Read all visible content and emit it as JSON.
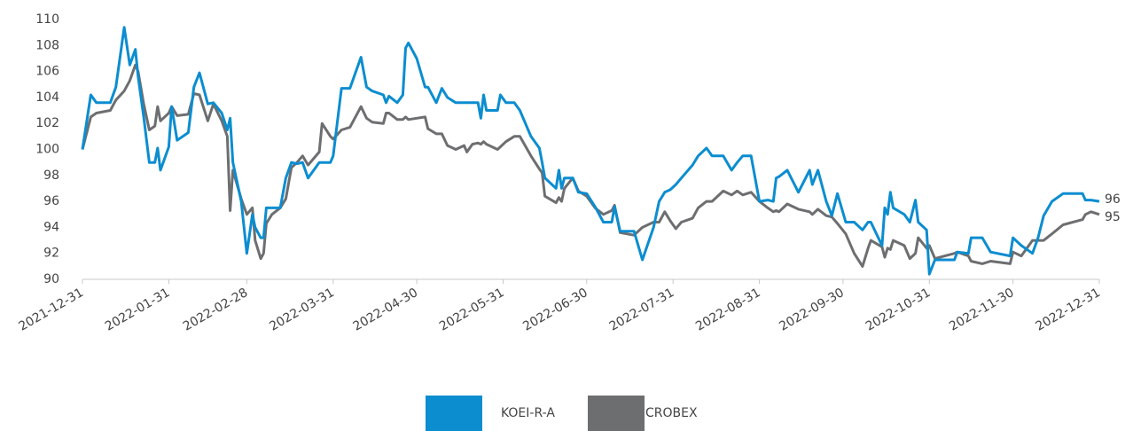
{
  "chart_data": {
    "type": "line",
    "x": [
      "2021-12-31",
      "2022-01-03",
      "2022-01-05",
      "2022-01-10",
      "2022-01-12",
      "2022-01-15",
      "2022-01-17",
      "2022-01-19",
      "2022-01-20",
      "2022-01-22",
      "2022-01-24",
      "2022-01-26",
      "2022-01-27",
      "2022-01-28",
      "2022-01-31",
      "2022-02-01",
      "2022-02-03",
      "2022-02-07",
      "2022-02-09",
      "2022-02-11",
      "2022-02-14",
      "2022-02-16",
      "2022-02-19",
      "2022-02-21",
      "2022-02-22",
      "2022-02-23",
      "2022-02-26",
      "2022-02-28",
      "2022-03-02",
      "2022-03-03",
      "2022-03-05",
      "2022-03-06",
      "2022-03-07",
      "2022-03-09",
      "2022-03-12",
      "2022-03-14",
      "2022-03-16",
      "2022-03-18",
      "2022-03-20",
      "2022-03-22",
      "2022-03-26",
      "2022-03-27",
      "2022-03-30",
      "2022-03-31",
      "2022-04-03",
      "2022-04-06",
      "2022-04-10",
      "2022-04-12",
      "2022-04-14",
      "2022-04-18",
      "2022-04-19",
      "2022-04-20",
      "2022-04-23",
      "2022-04-25",
      "2022-04-26",
      "2022-04-27",
      "2022-04-30",
      "2022-05-03",
      "2022-05-04",
      "2022-05-07",
      "2022-05-09",
      "2022-05-11",
      "2022-05-14",
      "2022-05-17",
      "2022-05-18",
      "2022-05-20",
      "2022-05-22",
      "2022-05-23",
      "2022-05-24",
      "2022-05-25",
      "2022-05-29",
      "2022-05-30",
      "2022-06-01",
      "2022-06-04",
      "2022-06-06",
      "2022-06-10",
      "2022-06-13",
      "2022-06-14",
      "2022-06-15",
      "2022-06-19",
      "2022-06-20",
      "2022-06-21",
      "2022-06-22",
      "2022-06-25",
      "2022-06-27",
      "2022-06-30",
      "2022-07-03",
      "2022-07-06",
      "2022-07-09",
      "2022-07-10",
      "2022-07-12",
      "2022-07-17",
      "2022-07-20",
      "2022-07-24",
      "2022-07-26",
      "2022-07-28",
      "2022-07-30",
      "2022-08-01",
      "2022-08-03",
      "2022-08-07",
      "2022-08-09",
      "2022-08-12",
      "2022-08-14",
      "2022-08-18",
      "2022-08-21",
      "2022-08-23",
      "2022-08-25",
      "2022-08-28",
      "2022-08-31",
      "2022-09-03",
      "2022-09-05",
      "2022-09-06",
      "2022-09-07",
      "2022-09-10",
      "2022-09-14",
      "2022-09-18",
      "2022-09-19",
      "2022-09-21",
      "2022-09-24",
      "2022-09-26",
      "2022-09-28",
      "2022-10-01",
      "2022-10-04",
      "2022-10-07",
      "2022-10-09",
      "2022-10-10",
      "2022-10-14",
      "2022-10-15",
      "2022-10-16",
      "2022-10-17",
      "2022-10-18",
      "2022-10-22",
      "2022-10-24",
      "2022-10-26",
      "2022-10-27",
      "2022-10-30",
      "2022-10-31",
      "2022-11-02",
      "2022-11-09",
      "2022-11-10",
      "2022-11-14",
      "2022-11-15",
      "2022-11-19",
      "2022-11-22",
      "2022-11-29",
      "2022-11-30",
      "2022-12-03",
      "2022-12-07",
      "2022-12-09",
      "2022-12-11",
      "2022-12-14",
      "2022-12-18",
      "2022-12-25",
      "2022-12-26",
      "2022-12-28",
      "2022-12-31"
    ],
    "series": [
      {
        "name": "KOEI-R-A",
        "color": "#0b8dd0",
        "values": [
          100,
          104.2,
          103.6,
          103.6,
          104.8,
          109.4,
          106.5,
          107.7,
          105.6,
          102.5,
          99.0,
          99.0,
          100.1,
          98.4,
          100.2,
          103.3,
          100.7,
          101.3,
          104.8,
          105.9,
          103.5,
          103.6,
          102.8,
          101.5,
          102.4,
          99.0,
          96.0,
          92.0,
          95.0,
          94.0,
          93.2,
          93.2,
          95.5,
          95.5,
          95.5,
          97.8,
          99.0,
          98.9,
          99.0,
          97.8,
          99.0,
          99.0,
          99.0,
          99.5,
          104.7,
          104.7,
          107.1,
          104.8,
          104.5,
          104.2,
          103.6,
          104.1,
          103.6,
          104.2,
          107.8,
          108.2,
          107.0,
          104.8,
          104.8,
          103.6,
          104.7,
          104.0,
          103.6,
          103.6,
          103.6,
          103.6,
          103.6,
          102.4,
          104.2,
          103.0,
          103.0,
          104.2,
          103.6,
          103.6,
          103.0,
          101.0,
          100.1,
          99.0,
          97.8,
          97.0,
          98.4,
          97.0,
          97.8,
          97.8,
          96.7,
          96.6,
          95.6,
          94.4,
          94.4,
          95.6,
          93.7,
          93.7,
          91.5,
          94.0,
          96.0,
          96.7,
          96.9,
          97.3,
          97.8,
          98.8,
          99.5,
          100.1,
          99.5,
          99.5,
          98.4,
          99.0,
          99.5,
          99.5,
          96.0,
          96.1,
          96.0,
          97.8,
          97.9,
          98.4,
          96.7,
          98.4,
          97.3,
          98.4,
          96.0,
          94.9,
          96.6,
          94.4,
          94.4,
          93.8,
          94.4,
          94.4,
          92.6,
          95.5,
          95.0,
          96.7,
          95.5,
          95.0,
          94.4,
          96.1,
          94.4,
          93.8,
          90.4,
          91.5,
          91.5,
          92.1,
          92.0,
          93.2,
          93.2,
          92.1,
          91.8,
          93.2,
          92.6,
          92.0,
          93.2,
          94.9,
          96.0,
          96.6,
          96.6,
          96.1,
          96.1,
          96
        ]
      },
      {
        "name": "CROBEX",
        "color": "#6d6e70",
        "values": [
          100,
          102.5,
          102.8,
          103.0,
          103.8,
          104.5,
          105.3,
          106.5,
          106.0,
          103.5,
          101.5,
          101.8,
          103.3,
          102.2,
          102.8,
          103.3,
          102.6,
          102.7,
          104.3,
          104.2,
          102.2,
          103.5,
          102.2,
          101.0,
          95.3,
          98.4,
          96.2,
          95.0,
          95.5,
          93.0,
          91.6,
          92.0,
          94.3,
          95.0,
          95.5,
          96.2,
          98.6,
          99.0,
          99.5,
          98.8,
          99.8,
          102.0,
          101.0,
          100.8,
          101.5,
          101.7,
          103.3,
          102.4,
          102.1,
          102.0,
          102.8,
          102.8,
          102.3,
          102.3,
          102.5,
          102.3,
          102.4,
          102.5,
          101.6,
          101.2,
          101.2,
          100.3,
          100.0,
          100.3,
          99.8,
          100.4,
          100.5,
          100.4,
          100.6,
          100.4,
          100.0,
          100.2,
          100.6,
          101.0,
          101.0,
          99.5,
          98.5,
          98.2,
          96.4,
          95.9,
          96.3,
          96.0,
          97.0,
          97.8,
          96.8,
          96.4,
          95.5,
          95.0,
          95.3,
          95.7,
          93.6,
          93.4,
          94.0,
          94.4,
          94.4,
          95.2,
          94.5,
          93.9,
          94.4,
          94.7,
          95.5,
          96.0,
          96.0,
          96.8,
          96.5,
          96.8,
          96.5,
          96.7,
          96.0,
          95.5,
          95.2,
          95.3,
          95.2,
          95.8,
          95.4,
          95.2,
          95.0,
          95.4,
          94.9,
          94.8,
          94.3,
          93.5,
          92.0,
          91.0,
          92.4,
          93.0,
          92.5,
          91.7,
          92.4,
          92.3,
          93.0,
          92.6,
          91.6,
          92.0,
          93.2,
          92.4,
          92.6,
          91.6,
          92.0,
          92.1,
          91.8,
          91.4,
          91.2,
          91.4,
          91.2,
          92.1,
          91.8,
          93.0,
          93.0,
          93.0,
          93.5,
          94.2,
          94.6,
          95.0,
          95.2,
          95
        ]
      }
    ],
    "xlim": [
      "2021-12-31",
      "2022-12-31"
    ],
    "xticks": [
      "2021-12-31",
      "2022-01-31",
      "2022-02-28",
      "2022-03-31",
      "2022-04-30",
      "2022-05-31",
      "2022-06-30",
      "2022-07-31",
      "2022-08-31",
      "2022-09-30",
      "2022-10-31",
      "2022-11-30",
      "2022-12-31"
    ],
    "ylim": [
      90,
      110
    ],
    "yticks": [
      90,
      92,
      94,
      96,
      98,
      100,
      102,
      104,
      106,
      108,
      110
    ],
    "grid": false,
    "legend": "bottom"
  }
}
